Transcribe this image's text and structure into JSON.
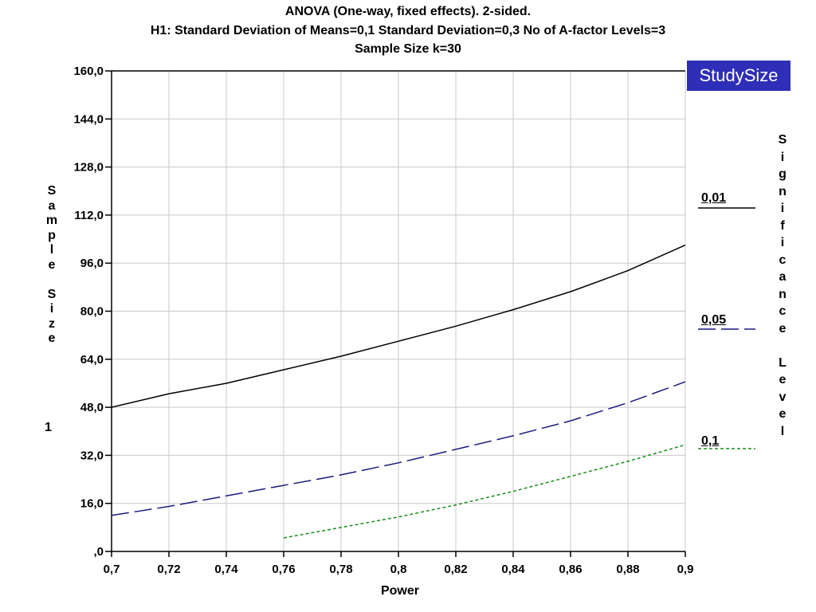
{
  "chart_data": {
    "type": "line",
    "title": "ANOVA (One-way, fixed effects). 2-sided.",
    "subtitle": "H1: Standard Deviation of Means=0,1    Standard Deviation=0,3    No of A-factor Levels=3",
    "subtitle2": "Sample Size k=30",
    "xlabel": "Power",
    "ylabel": "Sample Size",
    "ylabel_index": "1",
    "legend_title": "Significance Level",
    "badge": "StudySize",
    "xlim": [
      0.7,
      0.9
    ],
    "ylim": [
      0,
      160
    ],
    "x_ticks": [
      "0,7",
      "0,72",
      "0,74",
      "0,76",
      "0,78",
      "0,8",
      "0,82",
      "0,84",
      "0,86",
      "0,88",
      "0,9"
    ],
    "y_ticks": [
      ",0",
      "16,0",
      "32,0",
      "48,0",
      "64,0",
      "80,0",
      "96,0",
      "112,0",
      "128,0",
      "144,0",
      "160,0"
    ],
    "grid": true,
    "legend_position": "right",
    "series": [
      {
        "name": "0,01",
        "color": "#000000",
        "dash": "solid",
        "x": [
          0.7,
          0.72,
          0.74,
          0.76,
          0.78,
          0.8,
          0.82,
          0.84,
          0.86,
          0.88,
          0.9
        ],
        "y": [
          48,
          52.5,
          56,
          60.5,
          65,
          70,
          75,
          80.5,
          86.5,
          93.5,
          102
        ]
      },
      {
        "name": "0,05",
        "color": "#1a1a80",
        "dash": "dashed",
        "x": [
          0.7,
          0.72,
          0.74,
          0.76,
          0.78,
          0.8,
          0.82,
          0.84,
          0.86,
          0.88,
          0.9
        ],
        "y": [
          12,
          15,
          18.5,
          22,
          25.5,
          29.5,
          34,
          38.5,
          43.5,
          49.5,
          56.5
        ]
      },
      {
        "name": "0,1",
        "color": "#1a8c1a",
        "dash": "dotted",
        "x": [
          0.76,
          0.78,
          0.8,
          0.82,
          0.84,
          0.86,
          0.88,
          0.9
        ],
        "y": [
          4.5,
          8,
          11.5,
          15.5,
          20,
          25,
          30,
          35.5
        ]
      }
    ]
  }
}
